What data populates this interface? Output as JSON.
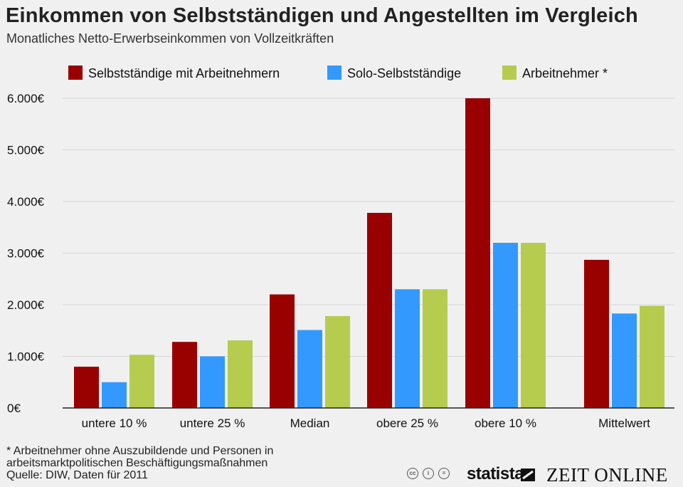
{
  "header": {
    "title": "Einkommen von Selbstständigen und Angestellten im Vergleich",
    "subtitle": "Monatliches Netto-Erwerbseinkommen von Vollzeitkräften"
  },
  "chart_data": {
    "type": "bar",
    "title": "Einkommen von Selbstständigen und Angestellten im Vergleich",
    "subtitle": "Monatliches Netto-Erwerbseinkommen von Vollzeitkräften",
    "xlabel": "",
    "ylabel": "",
    "ylim": [
      0,
      6000
    ],
    "yticks": [
      0,
      1000,
      2000,
      3000,
      4000,
      5000,
      6000
    ],
    "ytick_labels": [
      "0€",
      "1.000€",
      "2.000€",
      "3.000€",
      "4.000€",
      "5.000€",
      "6.000€"
    ],
    "grid": true,
    "legend_position": "top",
    "categories": [
      "untere 10 %",
      "untere 25 %",
      "Median",
      "obere 25 %",
      "obere 10 %",
      "Mittelwert"
    ],
    "series": [
      {
        "name": "Selbstständige mit Arbeitnehmern",
        "color": "#990000",
        "values": [
          800,
          1280,
          2200,
          3780,
          6000,
          2870
        ]
      },
      {
        "name": "Solo-Selbstständige",
        "color": "#3399ff",
        "values": [
          500,
          1000,
          1510,
          2300,
          3200,
          1830
        ]
      },
      {
        "name": "Arbeitnehmer *",
        "color": "#b5cc4f",
        "values": [
          1030,
          1310,
          1780,
          2300,
          3200,
          1980
        ]
      }
    ]
  },
  "footer": {
    "note_line1": "* Arbeitnehmer ohne Auszubildende und Personen in",
    "note_line2": "arbeitsmarktpolitischen Beschäftigungsmaßnahmen",
    "source": "Quelle: DIW, Daten für 2011",
    "brand_statista": "statista",
    "brand_zeit": "ZEIT ONLINE",
    "cc_icons": [
      "cc-icon",
      "by-icon",
      "nd-icon"
    ]
  }
}
